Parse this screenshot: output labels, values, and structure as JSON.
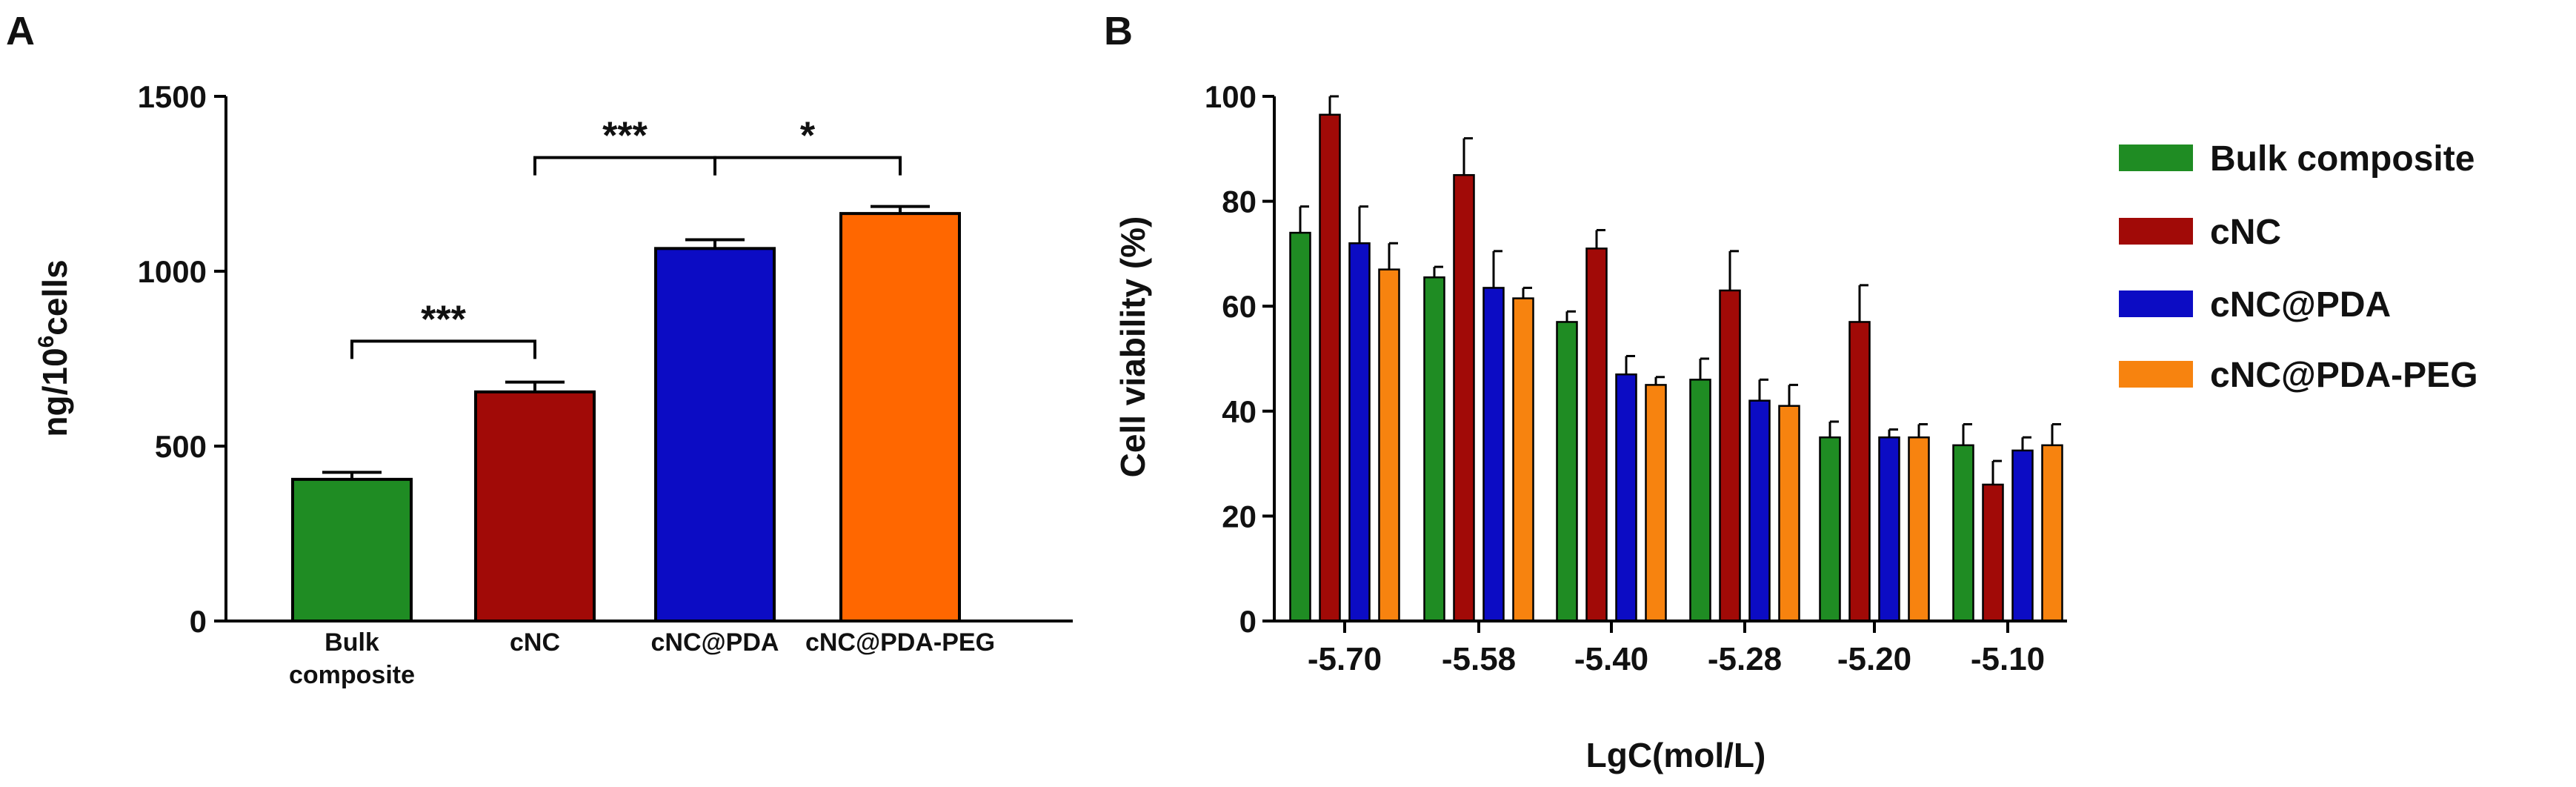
{
  "colors": {
    "bulk": "#1f8c23",
    "cnc": "#a10a07",
    "cnc_pda": "#0c0cc4",
    "cnc_pda_peg": "#ff6700",
    "cnc_pda_peg_b": "#f7830f"
  },
  "chart_data": [
    {
      "panel": "A",
      "type": "bar",
      "ylabel_main": "ng/10",
      "ylabel_sup": "6",
      "ylabel_tail": "cells",
      "xlabel": "",
      "ylim": [
        0,
        1500
      ],
      "yticks": [
        0,
        500,
        1000,
        1500
      ],
      "categories": [
        {
          "line1": "Bulk",
          "line2": "composite"
        },
        {
          "line1": "cNC",
          "line2": ""
        },
        {
          "line1": "cNC@PDA",
          "line2": ""
        },
        {
          "line1": "cNC@PDA-PEG",
          "line2": ""
        }
      ],
      "values": [
        405,
        655,
        1065,
        1165
      ],
      "errors": [
        20,
        28,
        25,
        20
      ],
      "significance": [
        {
          "from": 0,
          "to": 1,
          "label": "***",
          "y": 800
        },
        {
          "from": 1,
          "to": 2,
          "label": "***",
          "y": 1325
        },
        {
          "from": 2,
          "to": 3,
          "label": "*",
          "y": 1325
        }
      ]
    },
    {
      "panel": "B",
      "type": "bar",
      "ylabel": "Cell viability (%)",
      "xlabel": "LgC(mol/L)",
      "ylim": [
        0,
        100
      ],
      "yticks": [
        0,
        20,
        40,
        60,
        80,
        100
      ],
      "categories": [
        "-5.70",
        "-5.58",
        "-5.40",
        "-5.28",
        "-5.20",
        "-5.10"
      ],
      "series": [
        {
          "name": "Bulk composite",
          "values": [
            74,
            65.5,
            57,
            46,
            35,
            33.5
          ],
          "errors": [
            5,
            2,
            2,
            4,
            3,
            4
          ]
        },
        {
          "name": "cNC",
          "values": [
            96.5,
            85,
            71,
            63,
            57,
            26
          ],
          "errors": [
            3.5,
            7,
            3.5,
            7.5,
            7,
            4.5
          ]
        },
        {
          "name": "cNC@PDA",
          "values": [
            72,
            63.5,
            47,
            42,
            35,
            32.5
          ],
          "errors": [
            7,
            7,
            3.5,
            4,
            1.5,
            2.5
          ]
        },
        {
          "name": "cNC@PDA-PEG",
          "values": [
            67,
            61.5,
            45,
            41,
            35,
            33.5
          ],
          "errors": [
            5,
            2,
            1.5,
            4,
            2.5,
            4
          ]
        }
      ]
    }
  ]
}
